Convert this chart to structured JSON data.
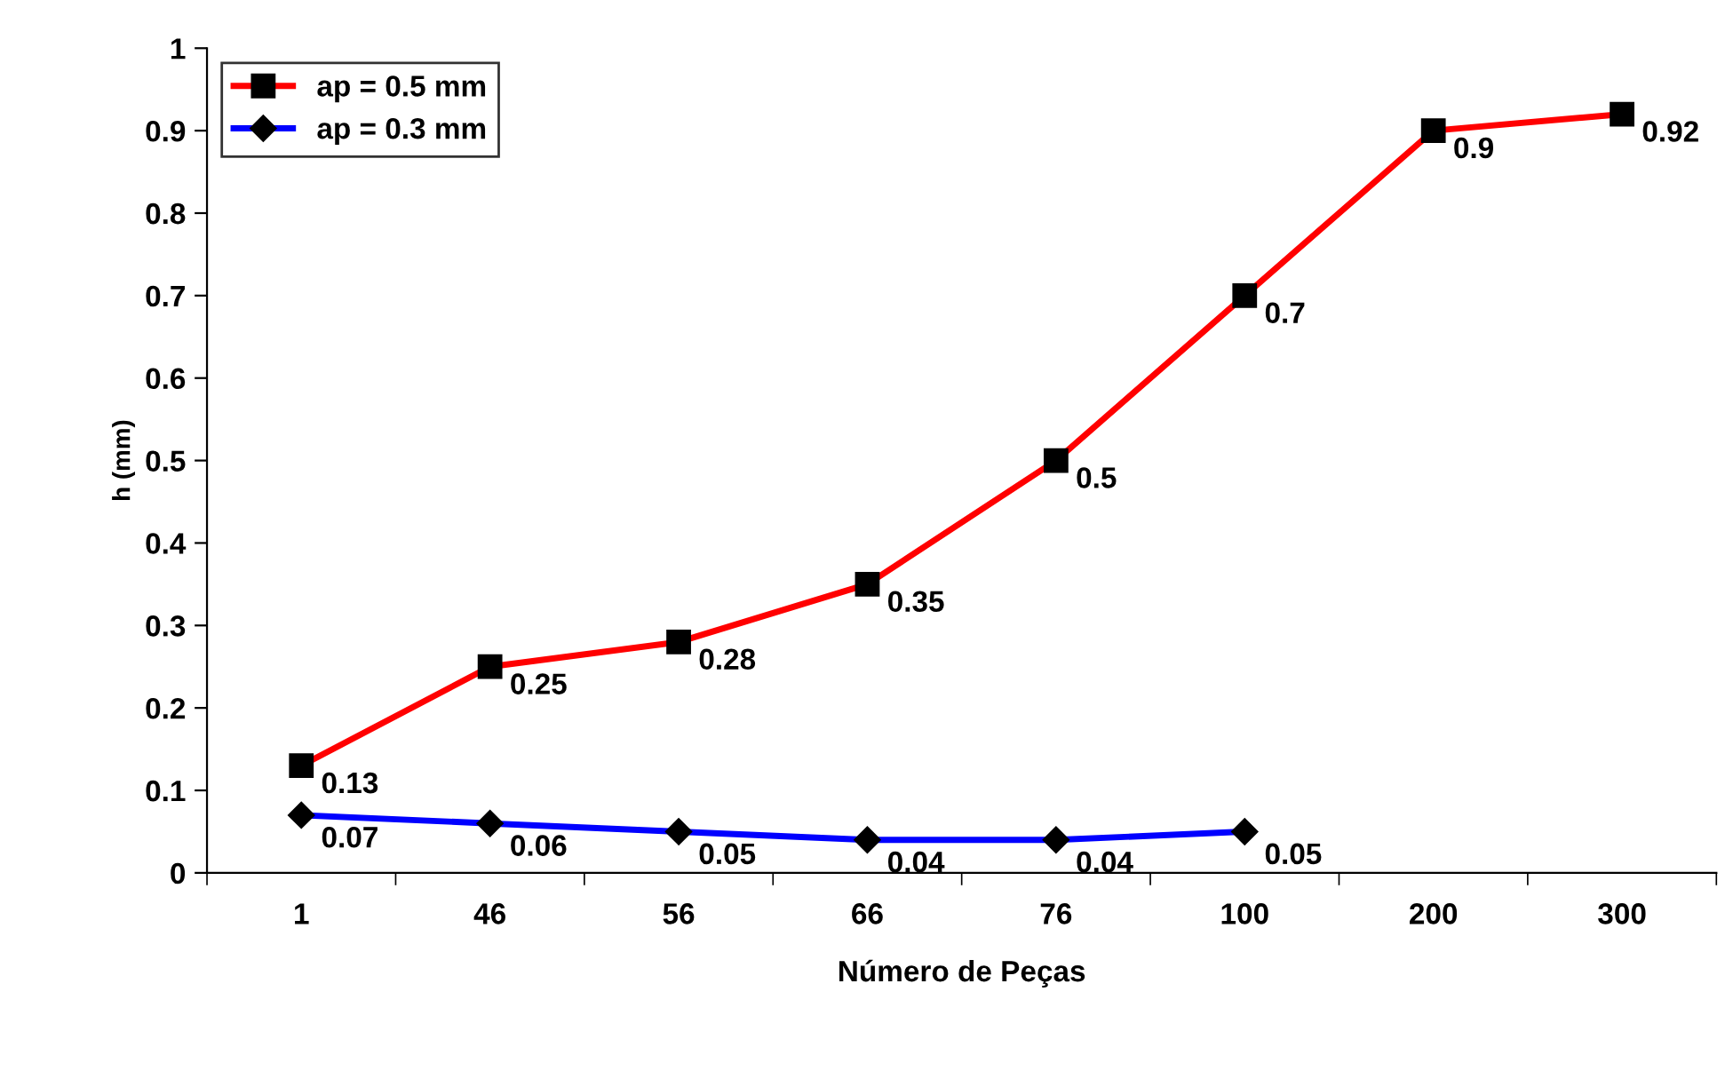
{
  "chart_data": {
    "type": "line",
    "xlabel": "Número de Peças",
    "ylabel": "h (mm)",
    "categories": [
      "1",
      "46",
      "56",
      "66",
      "76",
      "100",
      "200",
      "300"
    ],
    "series": [
      {
        "name": "ap = 0.5 mm",
        "color": "#ff0000",
        "marker": "square",
        "values": [
          0.13,
          0.25,
          0.28,
          0.35,
          0.5,
          0.7,
          0.9,
          0.92
        ]
      },
      {
        "name": "ap = 0.3 mm",
        "color": "#0000ff",
        "marker": "diamond",
        "values": [
          0.07,
          0.06,
          0.05,
          0.04,
          0.04,
          0.05,
          null,
          null
        ]
      }
    ],
    "ylim": [
      0,
      1
    ],
    "yticks": [
      0,
      0.1,
      0.2,
      0.3,
      0.4,
      0.5,
      0.6,
      0.7,
      0.8,
      0.9,
      1
    ],
    "data_labels": true,
    "grid": false,
    "legend": "top left",
    "line_style": "solid"
  }
}
